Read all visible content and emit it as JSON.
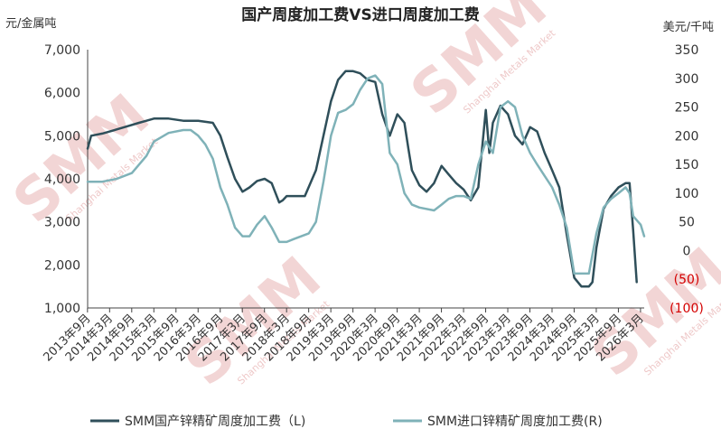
{
  "chart_data": {
    "type": "line",
    "title": "国产周度加工费VS进口周度加工费",
    "y_left_unit": "元/金属吨",
    "y_right_unit": "美元/千吨",
    "y_left_lim": [
      1000,
      7000
    ],
    "y_right_lim": [
      -100,
      350
    ],
    "y_left_ticks": [
      "1,000",
      "2,000",
      "3,000",
      "4,000",
      "5,000",
      "6,000",
      "7,000"
    ],
    "y_right_ticks": [
      "(100)",
      "(50)",
      "0",
      "50",
      "100",
      "150",
      "200",
      "250",
      "300",
      "350"
    ],
    "x_tick_labels": [
      "2013年9月",
      "2014年3月",
      "2014年9月",
      "2015年3月",
      "2015年9月",
      "2016年3月",
      "2016年9月",
      "2017年3月",
      "2017年9月",
      "2018年3月",
      "2018年9月",
      "2019年3月",
      "2019年9月",
      "2020年3月",
      "2020年9月",
      "2021年3月",
      "2021年9月",
      "2022年3月",
      "2022年9月",
      "2023年3月",
      "2023年9月",
      "2024年3月",
      "2024年9月",
      "2025年3月",
      "2025年9月",
      "2026年3月"
    ],
    "x_start": 2013.67,
    "x_end": 2026.25,
    "grid": false,
    "legend_position": "bottom",
    "series": [
      {
        "name": "SMM国产锌精矿周度加工费（L)",
        "axis": "left",
        "color": "#2f4f5a",
        "x": [
          2013.67,
          2013.75,
          2014.0,
          2014.17,
          2014.5,
          2014.83,
          2015.0,
          2015.17,
          2015.5,
          2015.83,
          2016.17,
          2016.5,
          2016.67,
          2016.83,
          2017.0,
          2017.17,
          2017.33,
          2017.5,
          2017.67,
          2017.83,
          2018.0,
          2018.08,
          2018.17,
          2018.33,
          2018.58,
          2018.83,
          2019.0,
          2019.17,
          2019.33,
          2019.5,
          2019.67,
          2019.83,
          2020.0,
          2020.17,
          2020.33,
          2020.5,
          2020.67,
          2020.83,
          2020.92,
          2021.0,
          2021.17,
          2021.33,
          2021.5,
          2021.67,
          2021.83,
          2022.0,
          2022.17,
          2022.33,
          2022.5,
          2022.67,
          2022.75,
          2022.83,
          2023.0,
          2023.08,
          2023.17,
          2023.33,
          2023.5,
          2023.67,
          2023.83,
          2024.0,
          2024.17,
          2024.33,
          2024.5,
          2024.67,
          2024.83,
          2025.0,
          2025.08,
          2025.17,
          2025.33,
          2025.5,
          2025.67,
          2025.83,
          2025.92,
          2026.0,
          2026.08
        ],
        "values": [
          4700,
          5000,
          5050,
          5100,
          5200,
          5300,
          5350,
          5400,
          5400,
          5350,
          5350,
          5300,
          5000,
          4500,
          4000,
          3700,
          3800,
          3950,
          4000,
          3900,
          3450,
          3500,
          3600,
          3600,
          3600,
          4200,
          5000,
          5800,
          6300,
          6500,
          6500,
          6450,
          6300,
          6250,
          5500,
          5000,
          5500,
          5300,
          4700,
          4200,
          3850,
          3700,
          3900,
          4300,
          4100,
          3900,
          3750,
          3500,
          3800,
          5600,
          4600,
          5300,
          5700,
          5600,
          5500,
          5000,
          4800,
          5200,
          5100,
          4600,
          4200,
          3800,
          2700,
          1700,
          1500,
          1500,
          1600,
          2400,
          3300,
          3600,
          3800,
          3900,
          3900,
          2800,
          1600
        ]
      },
      {
        "name": "SMM进口锌精矿周度加工费(R)",
        "axis": "right",
        "color": "#7fb2b8",
        "x": [
          2013.67,
          2014.0,
          2014.33,
          2014.67,
          2015.0,
          2015.17,
          2015.5,
          2015.83,
          2016.0,
          2016.17,
          2016.33,
          2016.5,
          2016.67,
          2016.83,
          2017.0,
          2017.17,
          2017.33,
          2017.5,
          2017.67,
          2017.83,
          2018.0,
          2018.17,
          2018.33,
          2018.5,
          2018.67,
          2018.83,
          2019.0,
          2019.17,
          2019.33,
          2019.5,
          2019.67,
          2019.83,
          2020.0,
          2020.17,
          2020.33,
          2020.5,
          2020.67,
          2020.83,
          2021.0,
          2021.17,
          2021.5,
          2021.67,
          2021.83,
          2022.0,
          2022.17,
          2022.33,
          2022.5,
          2022.67,
          2022.83,
          2023.0,
          2023.17,
          2023.33,
          2023.5,
          2023.67,
          2023.83,
          2024.0,
          2024.17,
          2024.33,
          2024.5,
          2024.67,
          2024.83,
          2025.0,
          2025.17,
          2025.33,
          2025.5,
          2025.67,
          2025.83,
          2025.92,
          2026.0,
          2026.17,
          2026.25
        ],
        "values": [
          120,
          120,
          125,
          135,
          165,
          190,
          205,
          210,
          210,
          200,
          185,
          160,
          110,
          80,
          40,
          25,
          25,
          45,
          60,
          40,
          15,
          15,
          20,
          25,
          30,
          50,
          120,
          200,
          240,
          245,
          255,
          280,
          300,
          305,
          290,
          170,
          150,
          100,
          80,
          75,
          70,
          80,
          90,
          95,
          95,
          90,
          150,
          190,
          170,
          250,
          260,
          250,
          200,
          170,
          150,
          130,
          110,
          80,
          40,
          -40,
          -40,
          -40,
          30,
          75,
          90,
          100,
          110,
          100,
          60,
          45,
          25
        ]
      }
    ]
  },
  "watermark": {
    "text": "SMM",
    "subtext": "Shanghai Metals Market"
  }
}
